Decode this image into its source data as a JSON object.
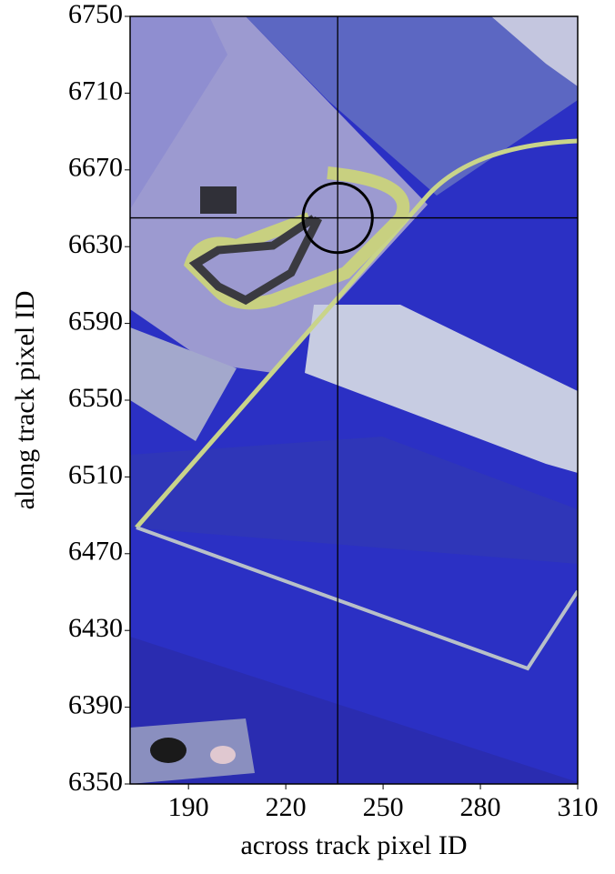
{
  "chart_data": {
    "type": "image",
    "xlabel": "across track pixel ID",
    "ylabel": "along track pixel ID",
    "xlim": [
      172,
      310
    ],
    "ylim": [
      6350,
      6750
    ],
    "xticks": [
      190,
      220,
      250,
      280,
      310
    ],
    "yticks": [
      6350,
      6390,
      6430,
      6470,
      6510,
      6550,
      6590,
      6630,
      6670,
      6710,
      6750
    ],
    "crosshair": {
      "x": 236,
      "y": 6645,
      "color": "#000000"
    },
    "marker_circle": {
      "x": 236,
      "y": 6645,
      "radius": 10.7,
      "color": "#000000"
    }
  }
}
